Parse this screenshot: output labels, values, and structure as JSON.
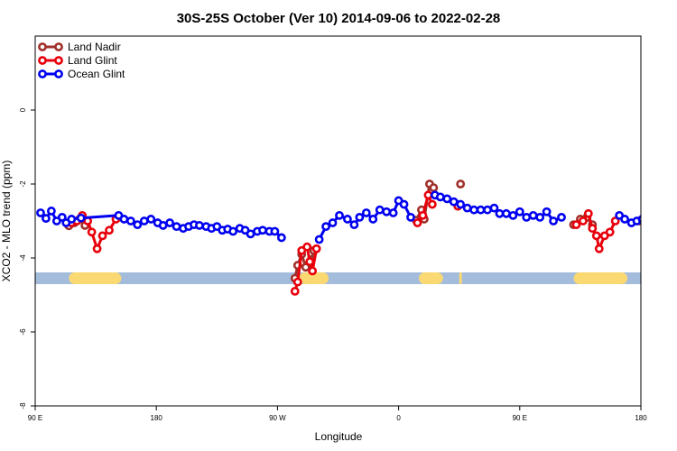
{
  "chart_data": {
    "type": "line",
    "title": "30S-25S October (Ver 10)   2014-09-06 to 2022-02-28",
    "xlabel": "Longitude",
    "ylabel": "XCO2 - MLO trend (ppm)",
    "xlim": [
      90,
      540
    ],
    "ylim": [
      -8,
      2
    ],
    "x_ticks": [
      {
        "value": 90,
        "label": "90 E"
      },
      {
        "value": 180,
        "label": "180"
      },
      {
        "value": 270,
        "label": "90 W"
      },
      {
        "value": 360,
        "label": "0"
      },
      {
        "value": 450,
        "label": "90 E"
      },
      {
        "value": 540,
        "label": "180"
      }
    ],
    "y_ticks": [
      {
        "value": -8,
        "label": "-8"
      },
      {
        "value": -6,
        "label": "-6"
      },
      {
        "value": -4,
        "label": "-4"
      },
      {
        "value": -2,
        "label": "-2"
      },
      {
        "value": 0,
        "label": "0"
      }
    ],
    "legend_position": "top-left",
    "land_band": {
      "y": -4.55,
      "base_color": "#a4bcdc",
      "land_color": "#fad872",
      "land_ranges": [
        [
          115,
          154
        ],
        [
          286,
          308
        ],
        [
          375,
          393
        ],
        [
          405,
          407
        ],
        [
          490,
          530
        ]
      ]
    },
    "series": [
      {
        "name": "Land Nadir",
        "color": "#a0302a",
        "segments": [
          [
            [
              115,
              -3.13
            ],
            [
              119,
              -3.05
            ],
            [
              123,
              -2.95
            ],
            [
              127,
              -3.12
            ]
          ],
          [
            [
              283,
              -4.55
            ],
            [
              285,
              -4.2
            ],
            [
              288,
              -3.9
            ],
            [
              291,
              -4.25
            ],
            [
              295,
              -4.05
            ],
            [
              297,
              -3.8
            ]
          ],
          [
            [
              373,
              -2.98
            ],
            [
              377,
              -2.7
            ],
            [
              379,
              -2.95
            ],
            [
              383,
              -2.0
            ],
            [
              386,
              -2.1
            ]
          ],
          [
            [
              406,
              -2.0
            ]
          ],
          [
            [
              539,
              -3.0
            ]
          ],
          [
            [
              490,
              -3.1
            ],
            [
              495,
              -2.95
            ],
            [
              500,
              -2.9
            ],
            [
              504,
              -3.1
            ]
          ]
        ]
      },
      {
        "name": "Land Glint",
        "color": "#e8000b",
        "segments": [
          [
            [
              117,
              -3.05
            ],
            [
              121,
              -3.0
            ],
            [
              125,
              -2.85
            ],
            [
              129,
              -3.0
            ],
            [
              132,
              -3.3
            ],
            [
              136,
              -3.75
            ],
            [
              140,
              -3.4
            ],
            [
              145,
              -3.25
            ],
            [
              150,
              -2.95
            ]
          ],
          [
            [
              283,
              -4.9
            ],
            [
              285,
              -4.65
            ],
            [
              288,
              -3.8
            ],
            [
              292,
              -3.7
            ],
            [
              294,
              -4.1
            ],
            [
              296,
              -4.35
            ],
            [
              299,
              -3.75
            ]
          ],
          [
            [
              374,
              -3.05
            ],
            [
              378,
              -2.85
            ],
            [
              382,
              -2.3
            ],
            [
              385,
              -2.55
            ]
          ],
          [
            [
              404,
              -2.6
            ]
          ],
          [
            [
              492,
              -3.1
            ],
            [
              497,
              -3.0
            ],
            [
              501,
              -2.8
            ],
            [
              504,
              -3.2
            ],
            [
              507,
              -3.4
            ],
            [
              509,
              -3.75
            ],
            [
              513,
              -3.4
            ],
            [
              517,
              -3.3
            ],
            [
              521,
              -3.0
            ]
          ]
        ]
      },
      {
        "name": "Ocean Glint",
        "color": "#0000f0",
        "segments": [
          [
            [
              94,
              -2.78
            ],
            [
              98,
              -2.93
            ],
            [
              102,
              -2.73
            ],
            [
              106,
              -3.0
            ],
            [
              110,
              -2.9
            ],
            [
              113,
              -3.05
            ],
            [
              117,
              -2.95
            ],
            [
              124,
              -2.92
            ],
            [
              152,
              -2.85
            ],
            [
              156,
              -2.95
            ],
            [
              161,
              -3.0
            ],
            [
              166,
              -3.1
            ],
            [
              171,
              -3.0
            ],
            [
              176,
              -2.95
            ],
            [
              181,
              -3.05
            ],
            [
              185,
              -3.12
            ],
            [
              190,
              -3.05
            ],
            [
              195,
              -3.15
            ],
            [
              200,
              -3.2
            ],
            [
              204,
              -3.15
            ],
            [
              208,
              -3.1
            ],
            [
              212,
              -3.12
            ],
            [
              217,
              -3.15
            ],
            [
              221,
              -3.2
            ],
            [
              225,
              -3.15
            ],
            [
              229,
              -3.25
            ],
            [
              233,
              -3.22
            ],
            [
              237,
              -3.28
            ],
            [
              242,
              -3.2
            ],
            [
              246,
              -3.25
            ],
            [
              250,
              -3.35
            ],
            [
              255,
              -3.28
            ],
            [
              259,
              -3.25
            ],
            [
              264,
              -3.28
            ],
            [
              268,
              -3.28
            ],
            [
              273,
              -3.45
            ]
          ],
          [
            [
              301,
              -3.5
            ],
            [
              306,
              -3.15
            ],
            [
              311,
              -3.05
            ],
            [
              316,
              -2.85
            ],
            [
              322,
              -2.95
            ],
            [
              327,
              -3.1
            ],
            [
              331,
              -2.9
            ],
            [
              336,
              -2.78
            ],
            [
              341,
              -2.95
            ],
            [
              346,
              -2.7
            ],
            [
              351,
              -2.75
            ],
            [
              356,
              -2.78
            ],
            [
              360,
              -2.45
            ],
            [
              364,
              -2.55
            ],
            [
              369,
              -2.9
            ]
          ],
          [
            [
              387,
              -2.3
            ],
            [
              391,
              -2.35
            ],
            [
              396,
              -2.4
            ],
            [
              401,
              -2.48
            ],
            [
              406,
              -2.55
            ],
            [
              411,
              -2.65
            ],
            [
              416,
              -2.7
            ],
            [
              421,
              -2.7
            ],
            [
              426,
              -2.7
            ],
            [
              431,
              -2.65
            ],
            [
              435,
              -2.8
            ],
            [
              440,
              -2.8
            ],
            [
              445,
              -2.85
            ],
            [
              450,
              -2.75
            ],
            [
              455,
              -2.9
            ],
            [
              460,
              -2.85
            ],
            [
              465,
              -2.9
            ],
            [
              470,
              -2.75
            ],
            [
              475,
              -3.0
            ],
            [
              481,
              -2.9
            ]
          ],
          [
            [
              524,
              -2.85
            ],
            [
              528,
              -2.95
            ],
            [
              533,
              -3.05
            ],
            [
              537,
              -3.0
            ],
            [
              541,
              -2.95
            ]
          ]
        ]
      }
    ]
  }
}
